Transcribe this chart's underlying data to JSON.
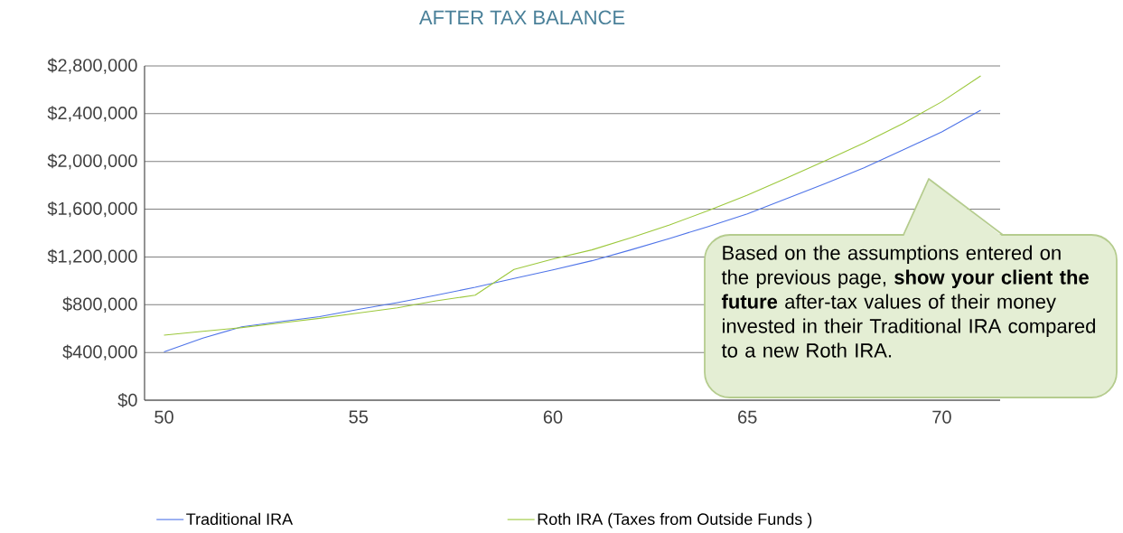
{
  "chart_data": {
    "type": "line",
    "title": "AFTER TAX BALANCE",
    "x": [
      50,
      51,
      52,
      53,
      54,
      55,
      56,
      57,
      58,
      59,
      60,
      61,
      62,
      63,
      64,
      65,
      66,
      67,
      68,
      69,
      70,
      71
    ],
    "series": [
      {
        "name": "Traditional IRA",
        "color": "#4f74e8",
        "values": [
          405000,
          520000,
          615000,
          658000,
          700000,
          760000,
          817000,
          880000,
          946000,
          1020000,
          1092000,
          1168000,
          1259000,
          1355000,
          1455000,
          1561000,
          1688000,
          1814000,
          1947000,
          2096000,
          2248000,
          2429000
        ]
      },
      {
        "name": "Roth IRA (Taxes from Outside Funds )",
        "color": "#9cc83c",
        "values": [
          545000,
          577000,
          608000,
          647000,
          686000,
          730000,
          774000,
          832000,
          880000,
          1095000,
          1183000,
          1259000,
          1360000,
          1468000,
          1589000,
          1718000,
          1859000,
          2005000,
          2155000,
          2318000,
          2500000,
          2717000
        ]
      }
    ],
    "xlim": [
      49.5,
      71.5
    ],
    "xticks": [
      50,
      55,
      60,
      65,
      70
    ],
    "ylim": [
      0,
      2800000
    ],
    "yticks": [
      {
        "value": 0,
        "label": "$0"
      },
      {
        "value": 400000,
        "label": "$400,000"
      },
      {
        "value": 800000,
        "label": "$800,000"
      },
      {
        "value": 1200000,
        "label": "$1,200,000"
      },
      {
        "value": 1600000,
        "label": "$1,600,000"
      },
      {
        "value": 2000000,
        "label": "$2,000,000"
      },
      {
        "value": 2400000,
        "label": "$2,400,000"
      },
      {
        "value": 2800000,
        "label": "$2,800,000"
      }
    ],
    "grid": "y",
    "legend": "bottom",
    "marker": "none",
    "line_style": "solid",
    "annotations": [
      "Based on the assumptions entered on the previous page, **show your client the future** after-tax values of their money invested in their Traditional IRA compared to a new Roth IRA."
    ]
  }
}
